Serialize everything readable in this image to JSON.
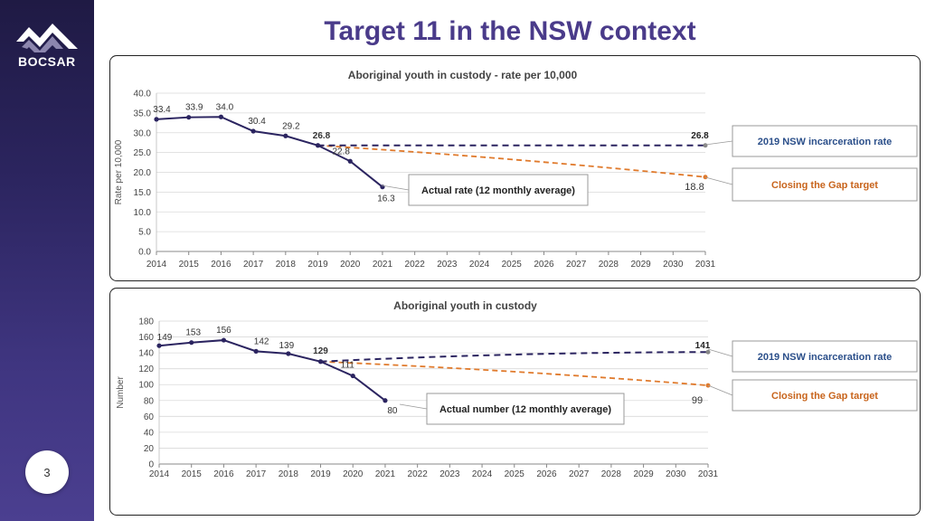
{
  "slide_title": "Target 11 in the NSW context",
  "brand": "BOCSAR",
  "page_number": "3",
  "colors": {
    "actual": "#2b2460",
    "nsw": "#2b2460",
    "gap": "#e07a2c",
    "title": "#4a3b8a",
    "grid": "#d9d9d9"
  },
  "chart_data": [
    {
      "type": "line",
      "title": "Aboriginal youth in custody - rate per 10,000",
      "xlabel": "",
      "ylabel": "Rate per 10,000",
      "x": [
        "2014",
        "2015",
        "2016",
        "2017",
        "2018",
        "2019",
        "2020",
        "2021",
        "2022",
        "2023",
        "2024",
        "2025",
        "2026",
        "2027",
        "2028",
        "2029",
        "2030",
        "2031"
      ],
      "ylim": [
        0,
        40
      ],
      "yticks": [
        "0.0",
        "5.0",
        "10.0",
        "15.0",
        "20.0",
        "25.0",
        "30.0",
        "35.0",
        "40.0"
      ],
      "ytick_step": 5,
      "series": [
        {
          "name": "Actual rate (12 monthly average)",
          "style": "solid",
          "points": [
            [
              2014,
              33.4
            ],
            [
              2015,
              33.9
            ],
            [
              2016,
              34.0
            ],
            [
              2017,
              30.4
            ],
            [
              2018,
              29.2
            ],
            [
              2019,
              26.8
            ],
            [
              2020,
              22.8
            ],
            [
              2021,
              16.3
            ]
          ],
          "labels": [
            "33.4",
            "33.9",
            "34.0",
            "30.4",
            "29.2",
            "26.8",
            "22.8",
            "16.3"
          ]
        },
        {
          "name": "2019 NSW incarceration rate",
          "style": "dashed",
          "points": [
            [
              2019,
              26.8
            ],
            [
              2031,
              26.8
            ]
          ],
          "end_label": "26.8"
        },
        {
          "name": "Closing the Gap target",
          "style": "dashed",
          "points": [
            [
              2019,
              26.8
            ],
            [
              2031,
              18.8
            ]
          ],
          "end_label": "18.8"
        }
      ],
      "callouts": {
        "actual": "Actual rate (12 monthly average)",
        "nsw": "2019 NSW incarceration rate",
        "gap": "Closing the Gap target"
      }
    },
    {
      "type": "line",
      "title": "Aboriginal youth in custody",
      "xlabel": "",
      "ylabel": "Number",
      "x": [
        "2014",
        "2015",
        "2016",
        "2017",
        "2018",
        "2019",
        "2020",
        "2021",
        "2022",
        "2023",
        "2024",
        "2025",
        "2026",
        "2027",
        "2028",
        "2029",
        "2030",
        "2031"
      ],
      "ylim": [
        0,
        180
      ],
      "yticks": [
        "0",
        "20",
        "40",
        "60",
        "80",
        "100",
        "120",
        "140",
        "160",
        "180"
      ],
      "ytick_step": 20,
      "series": [
        {
          "name": "Actual number (12 monthly average)",
          "style": "solid",
          "points": [
            [
              2014,
              149
            ],
            [
              2015,
              153
            ],
            [
              2016,
              156
            ],
            [
              2017,
              142
            ],
            [
              2018,
              139
            ],
            [
              2019,
              129
            ],
            [
              2020,
              111
            ],
            [
              2021,
              80
            ]
          ],
          "labels": [
            "149",
            "153",
            "156",
            "142",
            "139",
            "129",
            "111",
            "80"
          ]
        },
        {
          "name": "2019 NSW incarceration rate",
          "style": "dashed",
          "points": [
            [
              2019,
              129
            ],
            [
              2031,
              141
            ]
          ],
          "end_label": "141"
        },
        {
          "name": "Closing the Gap target",
          "style": "dashed",
          "points": [
            [
              2019,
              129
            ],
            [
              2031,
              99
            ]
          ],
          "end_label": "99"
        }
      ],
      "callouts": {
        "actual": "Actual number (12 monthly average)",
        "nsw": "2019 NSW incarceration rate",
        "gap": "Closing the Gap target"
      }
    }
  ]
}
